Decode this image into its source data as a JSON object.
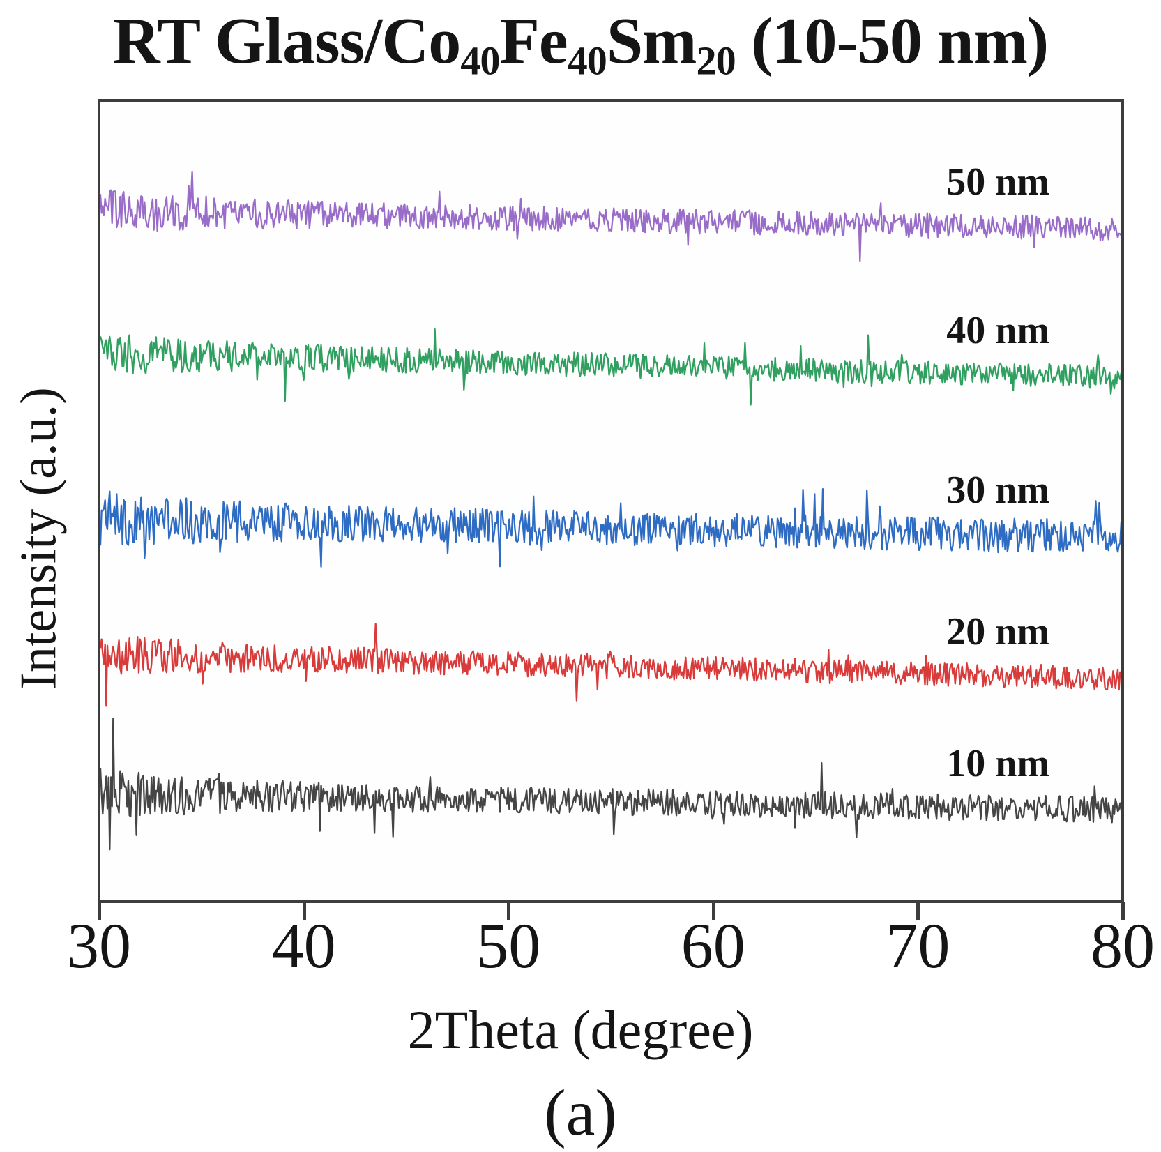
{
  "page": {
    "caption": "(a)"
  },
  "chart_data": {
    "type": "line",
    "title": "RT Glass/Co40Fe40Sm20 (10-50 nm)",
    "title_segments": [
      {
        "text": "RT Glass/Co",
        "sub": false
      },
      {
        "text": "40",
        "sub": true
      },
      {
        "text": "Fe",
        "sub": false
      },
      {
        "text": "40",
        "sub": true
      },
      {
        "text": "Sm",
        "sub": false
      },
      {
        "text": "20",
        "sub": true
      },
      {
        "text": " (10-50 nm)",
        "sub": false
      }
    ],
    "xlabel": "2Theta (degree)",
    "ylabel": "Intensity (a.u.)",
    "x_range": [
      30,
      80
    ],
    "x_ticks": [
      30,
      40,
      50,
      60,
      70,
      80
    ],
    "y_ticks": [],
    "grid": false,
    "frame_color": "#3d3d3d",
    "text_color": "#151515",
    "legend_position": "inline-right-labels",
    "series": [
      {
        "name": "50 nm",
        "thickness_nm": 50,
        "color": "#9a6cc9",
        "baseline_frac": 0.863,
        "drift_frac": 0.022,
        "noise_frac": 0.0155,
        "left_boost": 0.9,
        "spike_prob": 0.028,
        "seed": 101,
        "tall_spikes": [
          {
            "t": 0.09,
            "mult": 3.6
          }
        ]
      },
      {
        "name": "40 nm",
        "thickness_nm": 40,
        "color": "#2fa05f",
        "baseline_frac": 0.685,
        "drift_frac": 0.03,
        "noise_frac": 0.015,
        "left_boost": 0.9,
        "spike_prob": 0.028,
        "seed": 202,
        "tall_spikes": [
          {
            "t": 0.5,
            "mult": 3.2
          }
        ]
      },
      {
        "name": "30 nm",
        "thickness_nm": 30,
        "color": "#2e6cc4",
        "baseline_frac": 0.477,
        "drift_frac": 0.022,
        "noise_frac": 0.021,
        "left_boost": 0.8,
        "spike_prob": 0.03,
        "seed": 303,
        "tall_spikes": []
      },
      {
        "name": "20 nm",
        "thickness_nm": 20,
        "color": "#d93a3a",
        "baseline_frac": 0.308,
        "drift_frac": 0.03,
        "noise_frac": 0.015,
        "left_boost": 0.8,
        "spike_prob": 0.028,
        "seed": 404,
        "tall_spikes": [
          {
            "t": 0.27,
            "mult": 3.0
          }
        ]
      },
      {
        "name": "10 nm",
        "thickness_nm": 10,
        "color": "#454545",
        "baseline_frac": 0.134,
        "drift_frac": 0.021,
        "noise_frac": 0.0165,
        "left_boost": 1.1,
        "spike_prob": 0.03,
        "seed": 505,
        "tall_spikes": [
          {
            "t": 0.012,
            "mult": 5.2
          }
        ]
      }
    ],
    "observation": "All five patterns are featureless noise (amorphous films); intensity drifts slightly downward with increasing 2Theta"
  }
}
